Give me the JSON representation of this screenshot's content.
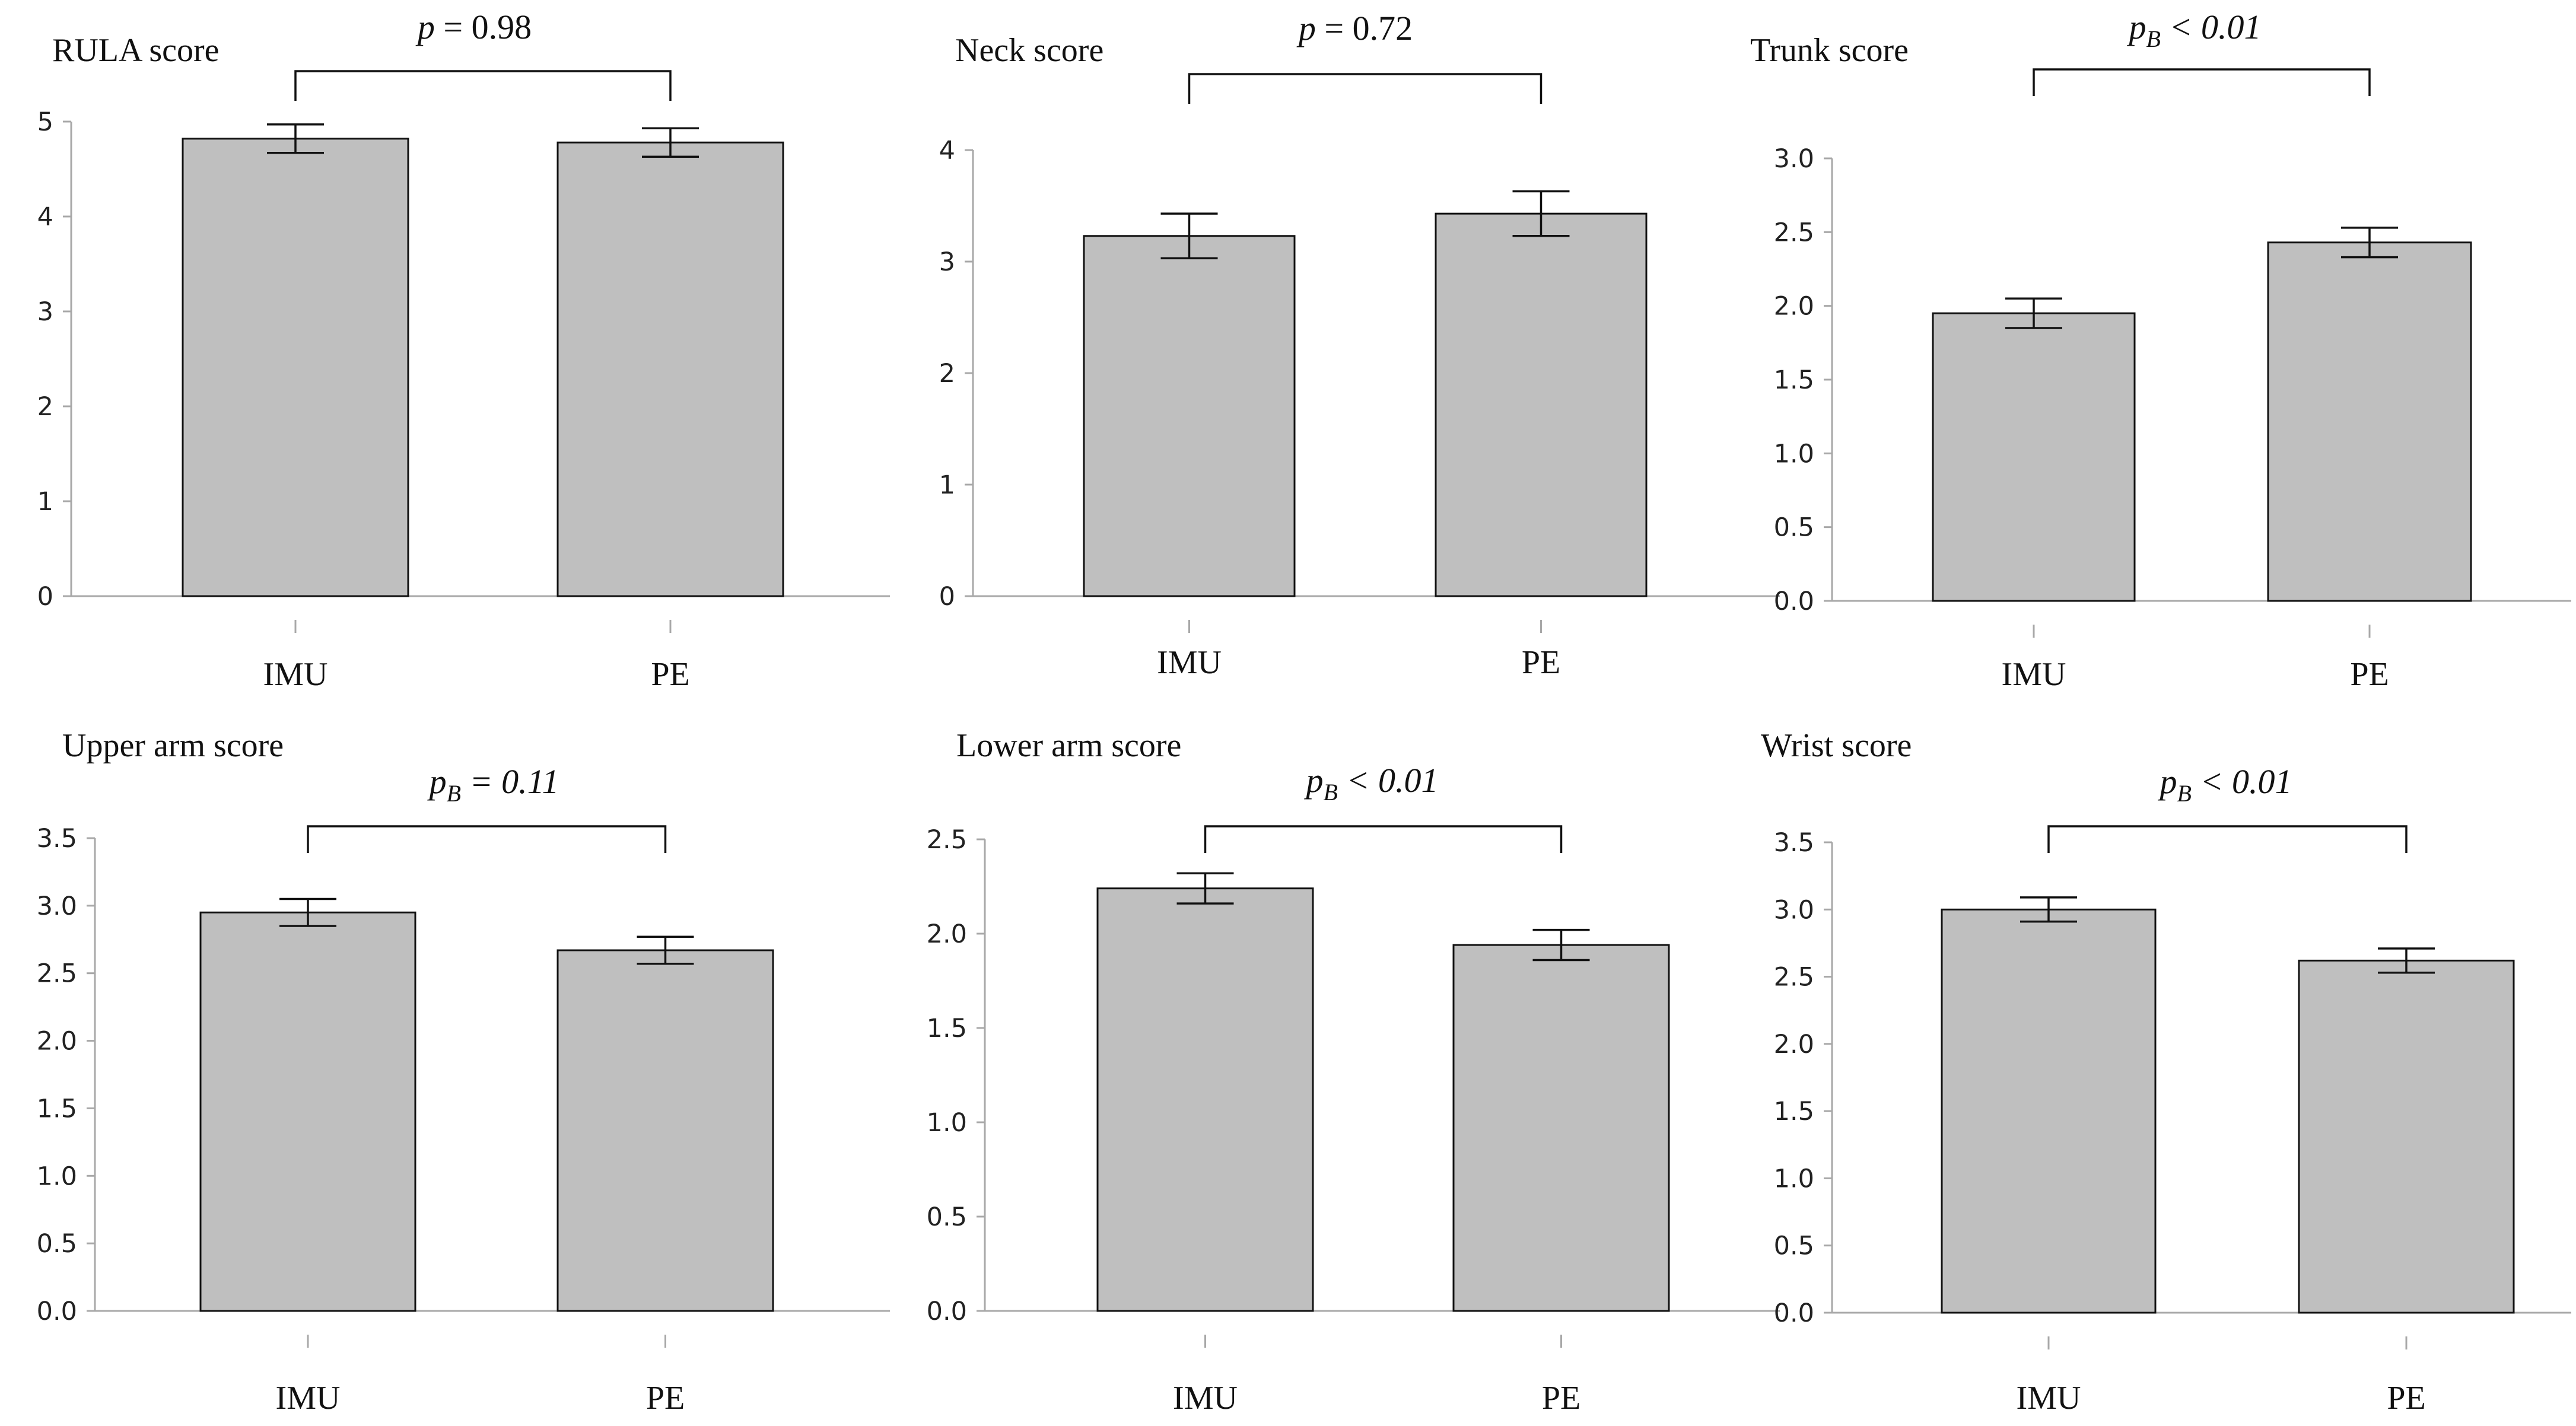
{
  "chart_data": [
    {
      "type": "bar",
      "title": "RULA score",
      "categories": [
        "IMU",
        "PE"
      ],
      "values": [
        4.82,
        4.78
      ],
      "error": [
        0.15,
        0.15
      ],
      "ylim": [
        0,
        5
      ],
      "yticks": [
        "0",
        "1",
        "2",
        "3",
        "4",
        "5"
      ],
      "ytick_values": [
        0,
        1,
        2,
        3,
        4,
        5
      ],
      "annotation": {
        "main": "p",
        "sub": "",
        "rest": " = 0.98"
      },
      "grid": false
    },
    {
      "type": "bar",
      "title": "Neck score",
      "categories": [
        "IMU",
        "PE"
      ],
      "values": [
        3.23,
        3.43
      ],
      "error": [
        0.2,
        0.2
      ],
      "ylim": [
        0,
        4
      ],
      "yticks": [
        "0",
        "1",
        "2",
        "3",
        "4"
      ],
      "ytick_values": [
        0,
        1,
        2,
        3,
        4
      ],
      "annotation": {
        "main": "p",
        "sub": "",
        "rest": " = 0.72"
      },
      "grid": false
    },
    {
      "type": "bar",
      "title": "Trunk score",
      "categories": [
        "IMU",
        "PE"
      ],
      "values": [
        1.95,
        2.43
      ],
      "error": [
        0.1,
        0.1
      ],
      "ylim": [
        0,
        3
      ],
      "yticks": [
        "0.0",
        "0.5",
        "1.0",
        "1.5",
        "2.0",
        "2.5",
        "3.0"
      ],
      "ytick_values": [
        0,
        0.5,
        1,
        1.5,
        2,
        2.5,
        3
      ],
      "annotation": {
        "main": "p",
        "sub": "B",
        "rest": " < 0.01"
      },
      "grid": false
    },
    {
      "type": "bar",
      "title": "Upper arm score",
      "categories": [
        "IMU",
        "PE"
      ],
      "values": [
        2.95,
        2.67
      ],
      "error": [
        0.1,
        0.1
      ],
      "ylim": [
        0,
        3.5
      ],
      "yticks": [
        "0.0",
        "0.5",
        "1.0",
        "1.5",
        "2.0",
        "2.5",
        "3.0",
        "3.5"
      ],
      "ytick_values": [
        0,
        0.5,
        1,
        1.5,
        2,
        2.5,
        3,
        3.5
      ],
      "annotation": {
        "main": "p",
        "sub": "B",
        "rest": " = 0.11"
      },
      "grid": false
    },
    {
      "type": "bar",
      "title": "Lower arm score",
      "categories": [
        "IMU",
        "PE"
      ],
      "values": [
        2.24,
        1.94
      ],
      "error": [
        0.08,
        0.08
      ],
      "ylim": [
        0,
        2.5
      ],
      "yticks": [
        "0.0",
        "0.5",
        "1.0",
        "1.5",
        "2.0",
        "2.5"
      ],
      "ytick_values": [
        0,
        0.5,
        1,
        1.5,
        2,
        2.5
      ],
      "annotation": {
        "main": "p",
        "sub": "B",
        "rest": " < 0.01"
      },
      "grid": false
    },
    {
      "type": "bar",
      "title": "Wrist score",
      "categories": [
        "IMU",
        "PE"
      ],
      "values": [
        3.0,
        2.62
      ],
      "error": [
        0.09,
        0.09
      ],
      "ylim": [
        0,
        3.5
      ],
      "yticks": [
        "0.0",
        "0.5",
        "1.0",
        "1.5",
        "2.0",
        "2.5",
        "3.0",
        "3.5"
      ],
      "ytick_values": [
        0,
        0.5,
        1,
        1.5,
        2,
        2.5,
        3,
        3.5
      ],
      "annotation": {
        "main": "p",
        "sub": "B",
        "rest": " < 0.01"
      },
      "grid": false
    }
  ]
}
